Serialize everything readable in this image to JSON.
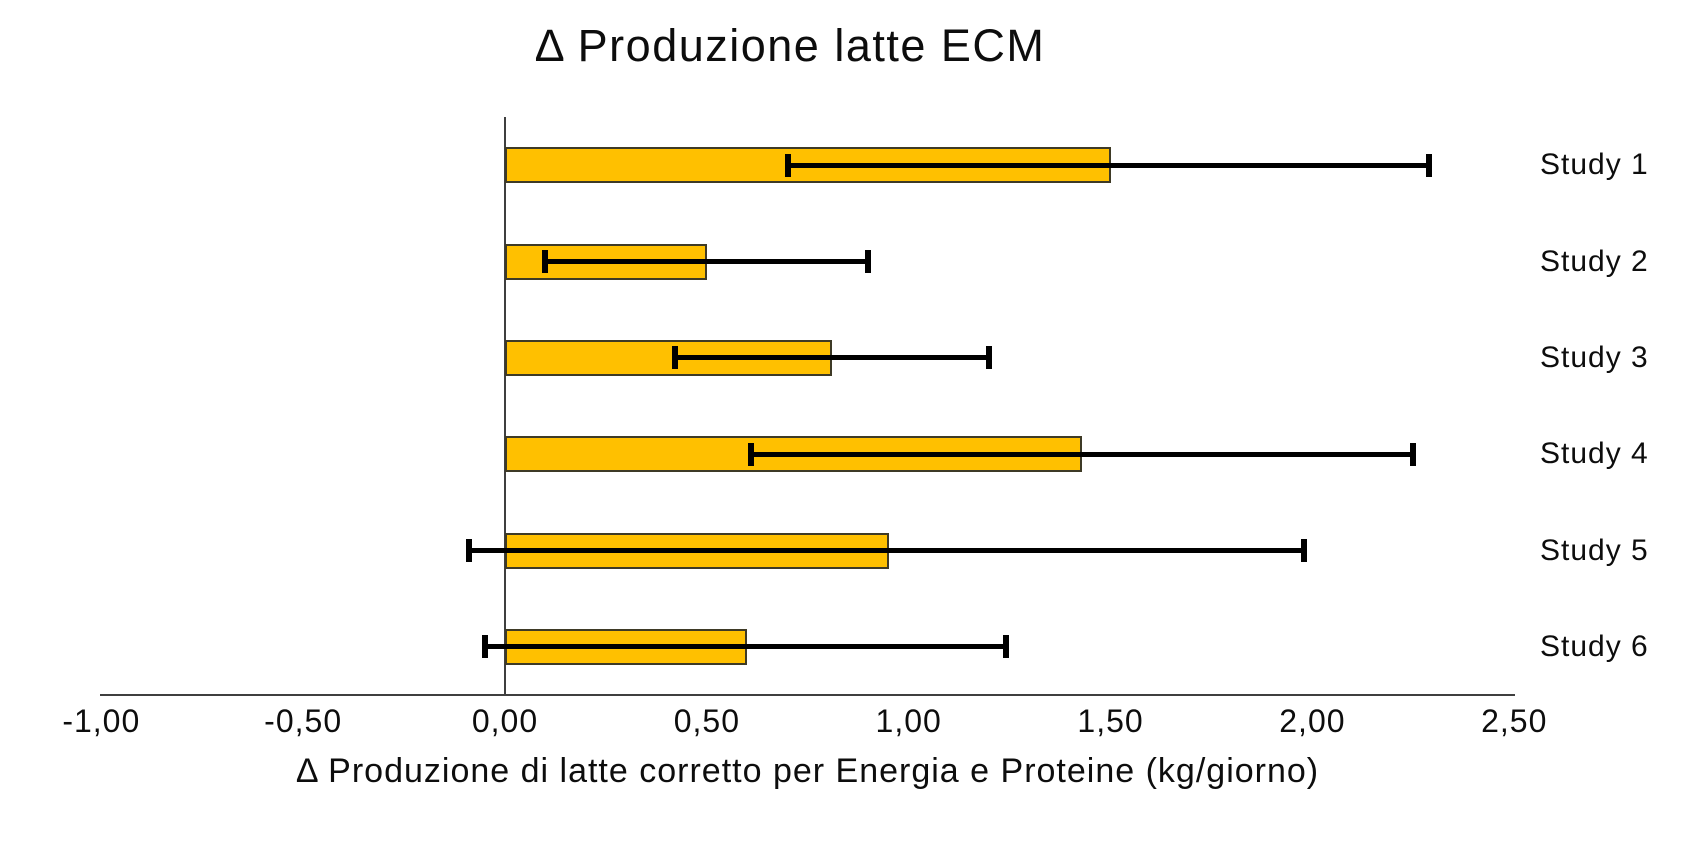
{
  "chart_data": {
    "type": "bar",
    "orientation": "horizontal",
    "title": "Δ Produzione latte ECM",
    "xlabel": "Δ Produzione di latte corretto per Energia e Proteine (kg/giorno)",
    "categories": [
      "Study 1",
      "Study 2",
      "Study 3",
      "Study 4",
      "Study 5",
      "Study 6"
    ],
    "values": [
      1.5,
      0.5,
      0.81,
      1.43,
      0.95,
      0.6
    ],
    "error_low": [
      0.7,
      0.1,
      0.42,
      0.61,
      -0.09,
      -0.05
    ],
    "error_high": [
      2.29,
      0.9,
      1.2,
      2.25,
      1.98,
      1.24
    ],
    "xlim": [
      -1.0,
      2.5
    ],
    "xticks": [
      -1.0,
      -0.5,
      0.0,
      0.5,
      1.0,
      1.5,
      2.0,
      2.5
    ],
    "xtick_labels": [
      "-1,00",
      "-0,50",
      "0,00",
      "0,50",
      "1,00",
      "1,50",
      "2,00",
      "2,50"
    ],
    "grid": false,
    "legend": null,
    "style": {
      "bar_color": "#FFC000",
      "bar_border_color": "#3E3A26",
      "error_color": "#000000",
      "axis_color": "#3F3F3F",
      "background": "#FFFFFF",
      "text_color": "#0D0D0D"
    }
  }
}
